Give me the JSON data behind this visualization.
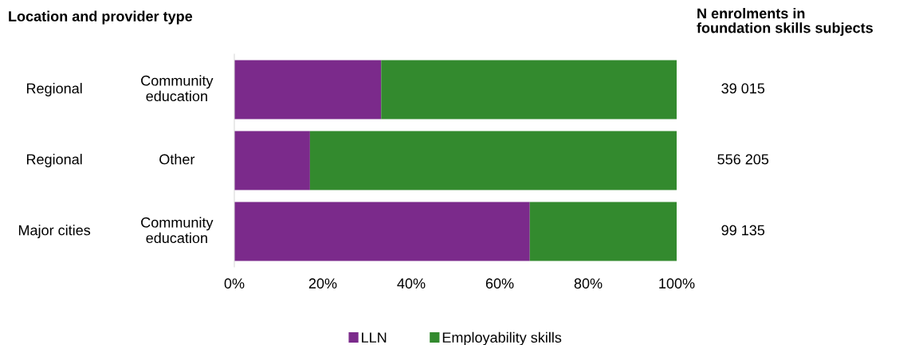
{
  "chart_data": {
    "type": "bar",
    "orientation": "horizontal",
    "stacked": true,
    "title": "Location and provider type",
    "categories": [
      "Community\neducation",
      "Other",
      "Community\neducation"
    ],
    "series": [
      {
        "name": "LLN",
        "color": "#7b2a8b",
        "values": [
          33.2,
          17.1,
          66.8
        ]
      },
      {
        "name": "Employability skills",
        "color": "#338a2e",
        "values": [
          66.8,
          82.9,
          33.2
        ]
      }
    ],
    "xlim": [
      0,
      100
    ],
    "xticks": [
      {
        "value": 0,
        "label": "0%"
      },
      {
        "value": 20,
        "label": "20%"
      },
      {
        "value": 40,
        "label": "40%"
      },
      {
        "value": 60,
        "label": "60%"
      },
      {
        "value": 80,
        "label": "80%"
      },
      {
        "value": 100,
        "label": "100%"
      }
    ],
    "annotations": [
      "Regional",
      "Regional",
      "Major cities",
      "N enrolments in\nfoundation skills subjects",
      "39 015",
      "556 205",
      "99 135"
    ],
    "legend": "bottom",
    "grid": false
  }
}
